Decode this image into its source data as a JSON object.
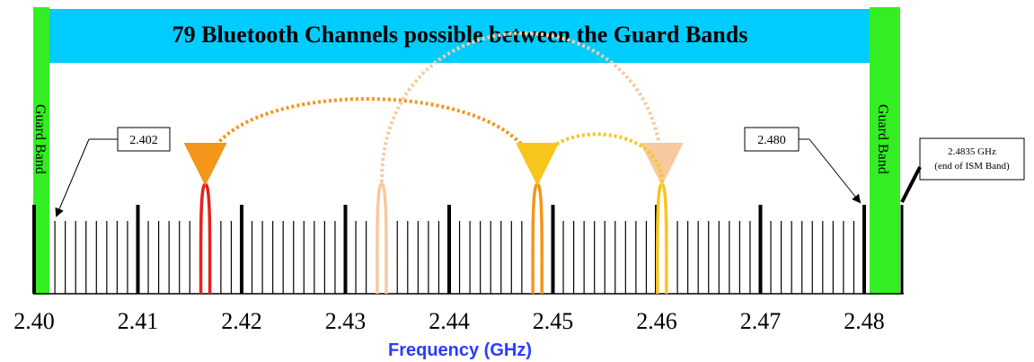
{
  "title": "79 Bluetooth Channels possible between the Guard Bands",
  "guard_band_left_label": "Guard Band",
  "guard_band_right_label": "Guard Band",
  "callout_start_label": "2.402",
  "callout_end_label": "2.480",
  "ism_end_label_line1": "2.4835 GHz",
  "ism_end_label_line2": "(end of ISM Band)",
  "xlabel": "Frequency (GHz)",
  "colors": {
    "title_band": "#00ccff",
    "guard_band": "#33ee22",
    "hop_red": "#e8211a",
    "hop_peach": "#f7c9a0",
    "hop_orange": "#f3961a",
    "hop_yellow": "#f8c51d"
  },
  "chart_data": {
    "type": "diagram",
    "x_axis": {
      "range": [
        2.4,
        2.4835
      ],
      "major_ticks": [
        "2.40",
        "2.41",
        "2.42",
        "2.43",
        "2.44",
        "2.45",
        "2.46",
        "2.47",
        "2.48"
      ],
      "major_values": [
        2.4,
        2.41,
        2.42,
        2.43,
        2.44,
        2.45,
        2.46,
        2.47,
        2.48
      ]
    },
    "channels": {
      "count": 79,
      "first_ghz": 2.402,
      "last_ghz": 2.48,
      "spacing_ghz": 0.001
    },
    "guard_bands": [
      {
        "from_ghz": 2.4,
        "to_ghz": 2.4015
      },
      {
        "from_ghz": 2.4805,
        "to_ghz": 2.4835
      }
    ],
    "hops_ghz": [
      {
        "color_key": "hop_red",
        "ghz": 2.4165
      },
      {
        "color_key": "hop_peach",
        "ghz": 2.4335
      },
      {
        "color_key": "hop_orange",
        "ghz": 2.4485
      },
      {
        "color_key": "hop_yellow",
        "ghz": 2.4605
      }
    ],
    "hop_arcs": [
      {
        "from_ghz": 2.4485,
        "to_ghz": 2.4165,
        "color_key": "hop_orange"
      },
      {
        "from_ghz": 2.4335,
        "to_ghz": 2.4605,
        "color_key": "hop_peach"
      },
      {
        "from_ghz": 2.4605,
        "to_ghz": 2.4485,
        "color_key": "hop_yellow"
      }
    ]
  }
}
